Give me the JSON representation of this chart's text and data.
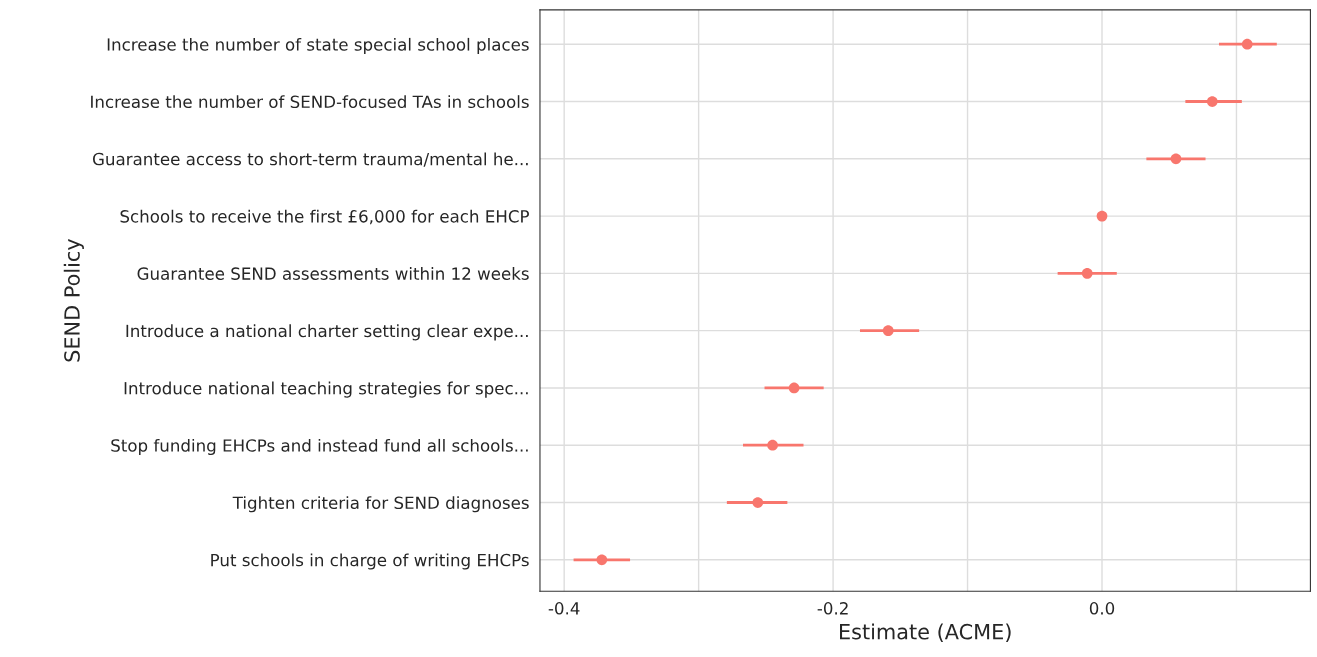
{
  "chart_data": {
    "type": "scatter",
    "xlabel": "Estimate (ACME)",
    "ylabel": "SEND Policy",
    "orientation": "horizontal",
    "categories": [
      "Increase the number of state special school places",
      "Increase the number of SEND-focused TAs in schools",
      "Guarantee access to short-term trauma/mental he...",
      "Schools to receive the first £6,000 for each EHCP",
      "Guarantee SEND assessments within 12 weeks",
      "Introduce a national charter setting clear expe...",
      "Introduce national teaching strategies for spec...",
      "Stop funding EHCPs and instead fund all schools...",
      "Tighten criteria for SEND diagnoses",
      "Put schools in charge of writing EHCPs"
    ],
    "color": "#f8766d",
    "values": [
      0.108,
      0.082,
      0.055,
      0.0,
      -0.011,
      -0.159,
      -0.229,
      -0.245,
      -0.256,
      -0.372
    ],
    "errors": [
      [
        0.087,
        0.13
      ],
      [
        0.062,
        0.104
      ],
      [
        0.033,
        0.077
      ],
      null,
      [
        -0.033,
        0.011
      ],
      [
        -0.18,
        -0.136
      ],
      [
        -0.251,
        -0.207
      ],
      [
        -0.267,
        -0.222
      ],
      [
        -0.279,
        -0.234
      ],
      [
        -0.393,
        -0.351
      ]
    ],
    "xlim": [
      -0.418,
      0.155
    ],
    "xticks": [
      {
        "value": -0.4,
        "label": "-0.4"
      },
      {
        "value": -0.3,
        "label": null
      },
      {
        "value": -0.2,
        "label": "-0.2"
      },
      {
        "value": -0.1,
        "label": null
      },
      {
        "value": 0.0,
        "label": "0.0"
      },
      {
        "value": 0.1,
        "label": null
      }
    ],
    "grid": true,
    "marker": "circle"
  }
}
